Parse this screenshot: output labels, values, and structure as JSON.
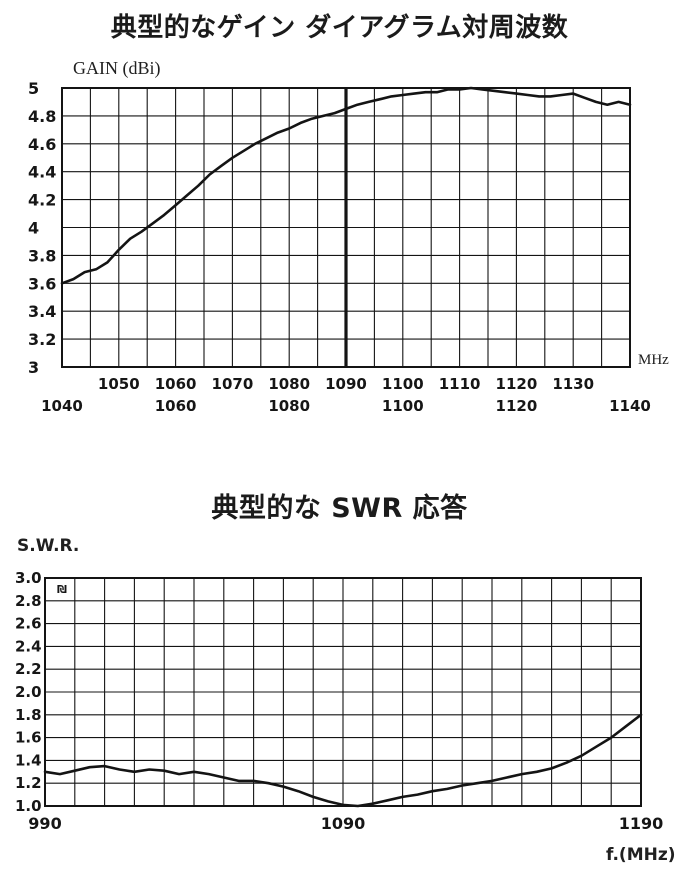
{
  "colors": {
    "ink": "#141414",
    "background": "#ffffff"
  },
  "gain_chart": {
    "title": "典型的なゲイン ダイアグラム対周波数",
    "y_axis_label": "GAIN (dBi)",
    "x_axis_unit": "MHz",
    "y_tick_labels": [
      "5",
      "4.8",
      "4.6",
      "4.4",
      "4.2",
      "4",
      "3.8",
      "3.6",
      "3.4",
      "3.2",
      "3"
    ],
    "x_tick_row1": [
      "1050",
      "1060",
      "1070",
      "1080",
      "1090",
      "1100",
      "1110",
      "1120",
      "1130"
    ],
    "x_tick_row1_bold": "1090",
    "x_tick_row2": [
      "1040",
      "1060",
      "1080",
      "1100",
      "1120",
      "1140"
    ],
    "marker_frequency": "1090"
  },
  "swr_chart": {
    "title": "典型的な SWR 応答",
    "y_axis_label": "S.W.R.",
    "x_axis_label": "f.(MHz)",
    "y_tick_labels": [
      "3.0",
      "2.8",
      "2.6",
      "2.4",
      "2.2",
      "2.0",
      "1.8",
      "1.6",
      "1.4",
      "1.2",
      "1.0"
    ],
    "x_tick_labels": [
      "990",
      "1090",
      "1190"
    ],
    "watermark": "₪"
  },
  "chart_data": [
    {
      "type": "line",
      "title": "典型的なゲイン ダイアグラム対周波数",
      "xlabel": "MHz",
      "ylabel": "GAIN (dBi)",
      "xlim": [
        1040,
        1140
      ],
      "ylim": [
        3,
        5
      ],
      "x_gridline_step": 5,
      "y_gridline_step": 0.2,
      "grid": true,
      "legend": false,
      "marker_x": 1090,
      "x": [
        1040,
        1042,
        1044,
        1046,
        1048,
        1050,
        1052,
        1054,
        1056,
        1058,
        1060,
        1062,
        1064,
        1066,
        1068,
        1070,
        1072,
        1074,
        1076,
        1078,
        1080,
        1082,
        1084,
        1086,
        1088,
        1090,
        1092,
        1094,
        1096,
        1098,
        1100,
        1102,
        1104,
        1106,
        1108,
        1110,
        1112,
        1114,
        1116,
        1118,
        1120,
        1122,
        1124,
        1126,
        1128,
        1130,
        1132,
        1134,
        1136,
        1138,
        1140
      ],
      "y": [
        3.6,
        3.63,
        3.68,
        3.7,
        3.75,
        3.84,
        3.92,
        3.97,
        4.03,
        4.09,
        4.16,
        4.23,
        4.3,
        4.38,
        4.44,
        4.5,
        4.55,
        4.6,
        4.64,
        4.68,
        4.71,
        4.75,
        4.78,
        4.8,
        4.82,
        4.85,
        4.88,
        4.9,
        4.92,
        4.94,
        4.95,
        4.96,
        4.97,
        4.97,
        4.99,
        4.99,
        5.0,
        4.99,
        4.98,
        4.97,
        4.96,
        4.95,
        4.94,
        4.94,
        4.95,
        4.96,
        4.93,
        4.9,
        4.88,
        4.9,
        4.88
      ]
    },
    {
      "type": "line",
      "title": "典型的な SWR 応答",
      "xlabel": "f.(MHz)",
      "ylabel": "S.W.R.",
      "xlim": [
        990,
        1190
      ],
      "ylim": [
        1.0,
        3.0
      ],
      "x_gridline_step": 10,
      "y_gridline_step": 0.2,
      "grid": true,
      "legend": false,
      "x": [
        990,
        995,
        1000,
        1005,
        1010,
        1015,
        1020,
        1025,
        1030,
        1035,
        1040,
        1045,
        1050,
        1055,
        1060,
        1065,
        1070,
        1075,
        1080,
        1085,
        1090,
        1095,
        1100,
        1105,
        1110,
        1115,
        1120,
        1125,
        1130,
        1135,
        1140,
        1145,
        1150,
        1155,
        1160,
        1165,
        1170,
        1175,
        1180,
        1185,
        1190
      ],
      "y": [
        1.3,
        1.28,
        1.31,
        1.34,
        1.35,
        1.32,
        1.3,
        1.32,
        1.31,
        1.28,
        1.3,
        1.28,
        1.25,
        1.22,
        1.22,
        1.2,
        1.17,
        1.13,
        1.08,
        1.04,
        1.01,
        1.0,
        1.02,
        1.05,
        1.08,
        1.1,
        1.13,
        1.15,
        1.18,
        1.2,
        1.22,
        1.25,
        1.28,
        1.3,
        1.33,
        1.38,
        1.44,
        1.52,
        1.6,
        1.7,
        1.8
      ]
    }
  ]
}
